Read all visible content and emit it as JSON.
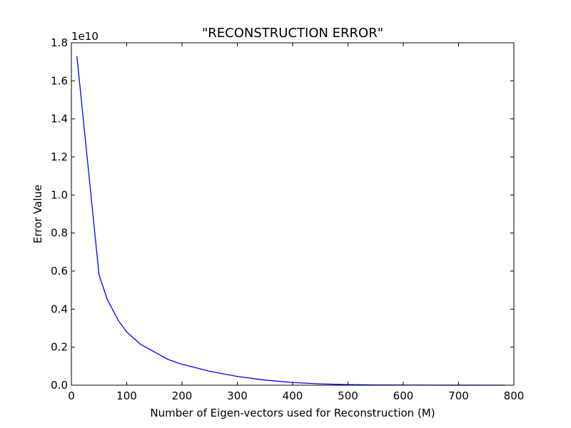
{
  "chart_data": {
    "type": "line",
    "title": "\"RECONSTRUCTION ERROR\"",
    "xlabel": "Number of Eigen-vectors used for Reconstruction (M)",
    "ylabel": "Error Value",
    "y_scale_factor": "1e10",
    "xlim": [
      0,
      800
    ],
    "ylim": [
      0,
      1.8
    ],
    "x_ticks": [
      "0",
      "100",
      "200",
      "300",
      "400",
      "500",
      "600",
      "700",
      "800"
    ],
    "y_ticks": [
      "0.0",
      "0.2",
      "0.4",
      "0.6",
      "0.8",
      "1.0",
      "1.2",
      "1.4",
      "1.6",
      "1.8"
    ],
    "grid": false,
    "legend": "none",
    "series": [
      {
        "color": "#0000ff",
        "x": [
          10,
          50,
          65,
          85,
          100,
          125,
          150,
          175,
          200,
          250,
          300,
          350,
          400,
          450,
          500,
          550,
          600,
          650,
          700,
          784
        ],
        "y": [
          1.73,
          0.58,
          0.45,
          0.34,
          0.28,
          0.215,
          0.175,
          0.135,
          0.11,
          0.073,
          0.046,
          0.027,
          0.014,
          0.007,
          0.003,
          0.0015,
          0.0008,
          0.0004,
          0.0002,
          0.0
        ]
      }
    ]
  }
}
